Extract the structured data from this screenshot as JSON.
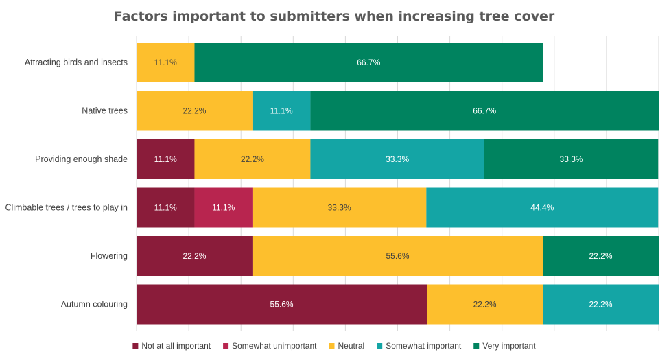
{
  "chart_data": {
    "type": "bar",
    "orientation": "horizontal",
    "stacked": true,
    "title": "Factors important to submitters when increasing tree cover",
    "categories": [
      "Attracting birds and insects",
      "Native trees",
      "Providing enough shade",
      "Climbable trees / trees to play in",
      "Flowering",
      "Autumn colouring"
    ],
    "series": [
      {
        "name": "Not at all important",
        "color": "#8a1c3a",
        "label_color": "#ffffff",
        "values": [
          0,
          0,
          11.1,
          11.1,
          22.2,
          55.6
        ]
      },
      {
        "name": "Somewhat unimportant",
        "color": "#b8254f",
        "label_color": "#ffffff",
        "values": [
          0,
          0,
          0,
          11.1,
          0,
          0
        ]
      },
      {
        "name": "Neutral",
        "color": "#fdbf2d",
        "label_color": "#404040",
        "values": [
          11.1,
          22.2,
          22.2,
          33.3,
          55.6,
          22.2
        ]
      },
      {
        "name": "Somewhat important",
        "color": "#14a5a5",
        "label_color": "#ffffff",
        "values": [
          0,
          11.1,
          33.3,
          44.4,
          0,
          22.2
        ]
      },
      {
        "name": "Very important",
        "color": "#00835f",
        "label_color": "#ffffff",
        "values": [
          66.7,
          66.7,
          33.3,
          0,
          22.2,
          0
        ]
      }
    ],
    "value_suffix": "%",
    "xlim": [
      0,
      100
    ],
    "grid": true,
    "legend": "bottom"
  }
}
